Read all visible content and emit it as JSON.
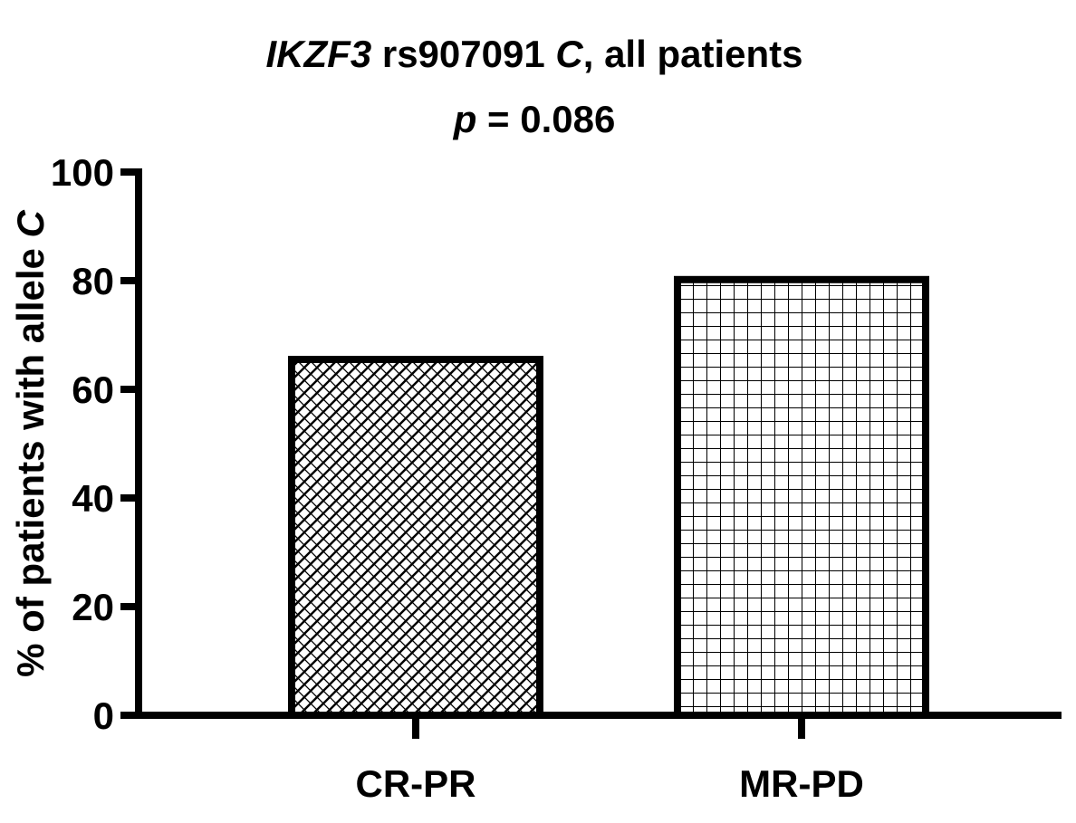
{
  "chart_data": {
    "type": "bar",
    "title_parts": [
      {
        "text": "IKZF3",
        "italic": true
      },
      {
        "text": " rs907091 ",
        "italic": false
      },
      {
        "text": "C",
        "italic": true
      },
      {
        "text": ", all patients",
        "italic": false
      }
    ],
    "subtitle_parts": [
      {
        "text": "p",
        "italic": true
      },
      {
        "text": " = 0.086",
        "italic": false
      }
    ],
    "ylabel_parts": [
      {
        "text": "% of patients with allele ",
        "italic": false
      },
      {
        "text": "C",
        "italic": true
      }
    ],
    "xlabel": "",
    "categories": [
      "CR-PR",
      "MR-PD"
    ],
    "values": [
      65.5,
      80.2
    ],
    "patterns": [
      "diagonal-crosshatch",
      "square-grid"
    ],
    "bar_color": "#000000",
    "fill_color": "#ffffff",
    "ylim": [
      0,
      100
    ],
    "yticks": [
      0,
      20,
      40,
      60,
      80,
      100
    ],
    "grid": false,
    "legend": "none"
  }
}
